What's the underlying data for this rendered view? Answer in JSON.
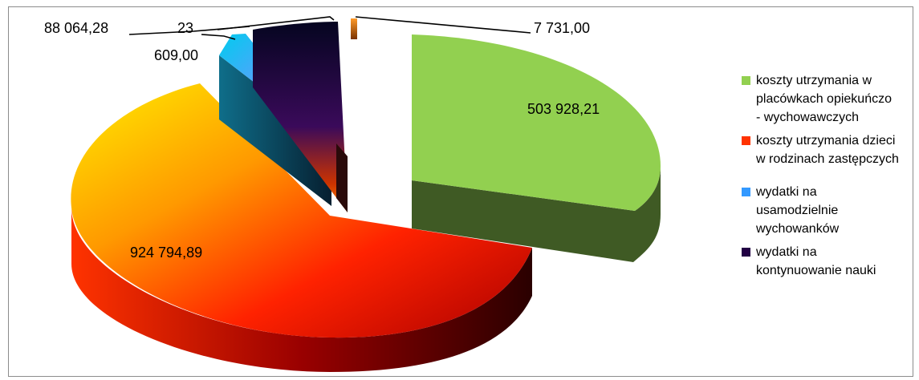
{
  "chart_data": {
    "type": "pie",
    "title": "",
    "slices": [
      {
        "label": "koszty utrzymania w placówkach opiekuńczo - wychowawczych",
        "value": 503928.21,
        "value_label": "503 928,21",
        "color": "#92d050",
        "side_color": "#3e5a23"
      },
      {
        "label": "koszty utrzymania dzieci w rodzinach zastępczych",
        "value": 924794.89,
        "value_label": "924 794,89",
        "color": "#ff3300",
        "side_color": "#6b0000"
      },
      {
        "label": "wydatki na usamodzielnie wychowanków",
        "value": 23609.0,
        "value_label_lines": [
          "23",
          "609,00"
        ],
        "color": "#33aadd",
        "side_color": "#123d52"
      },
      {
        "label": "wydatki na kontynuowanie nauki",
        "value": 88064.28,
        "value_label": "88 064,28",
        "color": "#1a0a3a",
        "side_color": "#0a0420"
      },
      {
        "label": "",
        "value": 7731.0,
        "value_label": "7 731,00",
        "color": "#ff8c1a",
        "side_color": "#8a3d00"
      }
    ],
    "legend_position": "right"
  },
  "legend": {
    "items": [
      {
        "lines": [
          "koszty utrzymania w",
          "placówkach opiekuńczo",
          "- wychowawczych"
        ],
        "color": "#92d050"
      },
      {
        "lines": [
          "koszty utrzymania dzieci",
          "w rodzinach zastępczych"
        ],
        "color": "#ff3300"
      },
      {
        "lines": [
          "wydatki na",
          "usamodzielnie",
          "wychowanków"
        ],
        "color": "#3399ff"
      },
      {
        "lines": [
          "wydatki na",
          "kontynuowanie nauki"
        ],
        "color": "#220044"
      }
    ]
  }
}
